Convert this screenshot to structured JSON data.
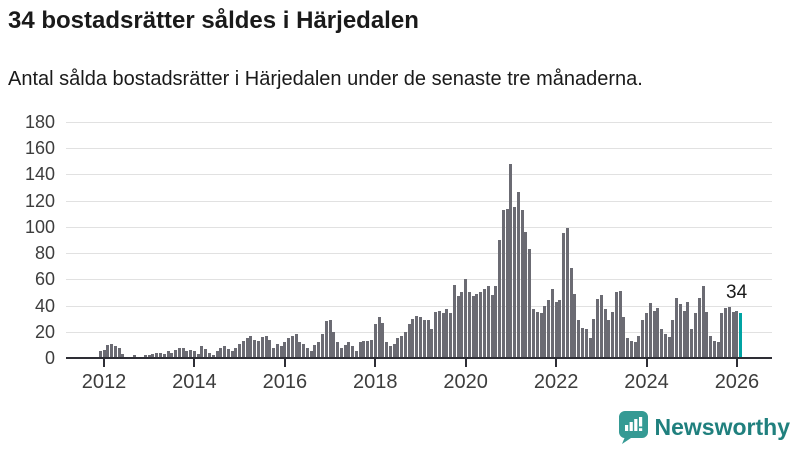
{
  "header": {
    "title": "34 bostadsrätter såldes i Härjedalen",
    "subtitle": "Antal sålda bostadsrätter i Härjedalen under de senaste tre månaderna."
  },
  "chart_data": {
    "type": "bar",
    "title": "34 bostadsrätter såldes i Härjedalen",
    "subtitle": "Antal sålda bostadsrätter i Härjedalen under de senaste tre månaderna.",
    "frequency": "monthly",
    "x_start": "2011-12",
    "x_end": "2026-02",
    "ylim": [
      0,
      180
    ],
    "grid": "horizontal",
    "y_tick_labels": [
      "0",
      "20",
      "40",
      "60",
      "80",
      "100",
      "120",
      "140",
      "160",
      "180"
    ],
    "y_tick_values": [
      0,
      20,
      40,
      60,
      80,
      100,
      120,
      140,
      160,
      180
    ],
    "x_tick_labels": [
      "2012",
      "2014",
      "2016",
      "2018",
      "2020",
      "2022",
      "2024",
      "2026"
    ],
    "x_tick_years": [
      2012,
      2014,
      2016,
      2018,
      2020,
      2022,
      2024,
      2026
    ],
    "values": [
      5,
      6,
      10,
      11,
      9,
      8,
      3,
      1,
      1,
      2,
      1,
      1,
      2,
      2,
      3,
      4,
      4,
      3,
      5,
      4,
      6,
      8,
      8,
      5,
      6,
      5,
      3,
      9,
      7,
      4,
      2,
      5,
      8,
      9,
      7,
      5,
      8,
      11,
      13,
      15,
      17,
      14,
      13,
      16,
      17,
      14,
      8,
      11,
      9,
      12,
      15,
      17,
      18,
      12,
      11,
      8,
      5,
      10,
      12,
      18,
      28,
      29,
      20,
      12,
      8,
      10,
      12,
      9,
      5,
      12,
      13,
      13,
      14,
      26,
      31,
      27,
      12,
      9,
      11,
      15,
      17,
      20,
      26,
      30,
      32,
      31,
      29,
      29,
      22,
      35,
      36,
      34,
      37,
      34,
      56,
      47,
      50,
      60,
      50,
      47,
      49,
      50,
      53,
      55,
      48,
      55,
      90,
      113,
      114,
      148,
      115,
      127,
      113,
      96,
      83,
      37,
      35,
      34,
      40,
      44,
      53,
      43,
      44,
      95,
      99,
      69,
      49,
      29,
      23,
      22,
      15,
      30,
      45,
      48,
      37,
      29,
      35,
      50,
      51,
      31,
      15,
      13,
      12,
      17,
      29,
      34,
      42,
      36,
      38,
      22,
      18,
      16,
      29,
      46,
      41,
      36,
      43,
      22,
      34,
      46,
      55,
      35,
      17,
      13,
      12,
      34,
      38,
      39,
      35,
      36,
      34
    ],
    "bar_color": "#6b6b73",
    "highlight_color": "#00a3a3",
    "highlight_last": true,
    "annotation": {
      "text": "34",
      "value": 34
    }
  },
  "footer": {
    "brand": "Newsworthy",
    "brand_color": "#20807e",
    "logo_icon_color": "#359a94"
  }
}
